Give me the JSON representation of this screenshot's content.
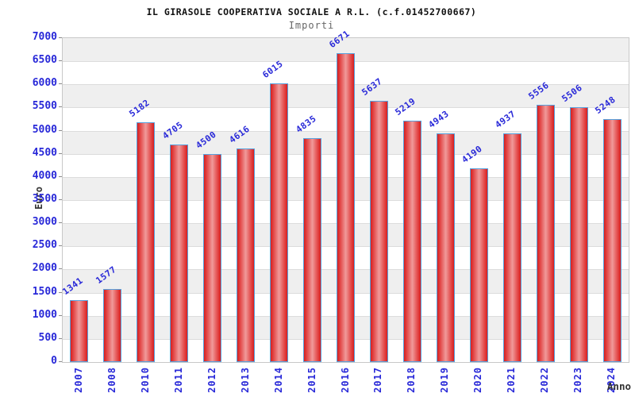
{
  "chart_data": {
    "type": "bar",
    "title": "IL GIRASOLE COOPERATIVA SOCIALE A R.L. (c.f.01452700667)",
    "subtitle": "Importi",
    "xlabel": "Anno",
    "ylabel": "Euro",
    "categories": [
      "2007",
      "2008",
      "2010",
      "2011",
      "2012",
      "2013",
      "2014",
      "2015",
      "2016",
      "2017",
      "2018",
      "2019",
      "2020",
      "2021",
      "2022",
      "2023",
      "2024"
    ],
    "values": [
      1341,
      1577,
      5182,
      4705,
      4500,
      4616,
      6015,
      4835,
      6671,
      5637,
      5219,
      4943,
      4190,
      4937,
      5556,
      5506,
      5248
    ],
    "ylim": [
      0,
      7000
    ],
    "ytick_step": 500,
    "grid": "alternating-horizontal-bands",
    "legend_position": "none",
    "style": {
      "label_color": "#2828d8",
      "title_color": "#111111",
      "subtitle_color": "#666666",
      "axis_title_color": "#333333",
      "band_gray": "#efefef",
      "band_white": "#ffffff",
      "gridline_color": "#dcdcdc",
      "plot_border_color": "#c8c8c8",
      "bar_border_color": "#57a2de",
      "bar_color_edge": "#d61f1f",
      "bar_color_center": "#f09a9a"
    }
  }
}
